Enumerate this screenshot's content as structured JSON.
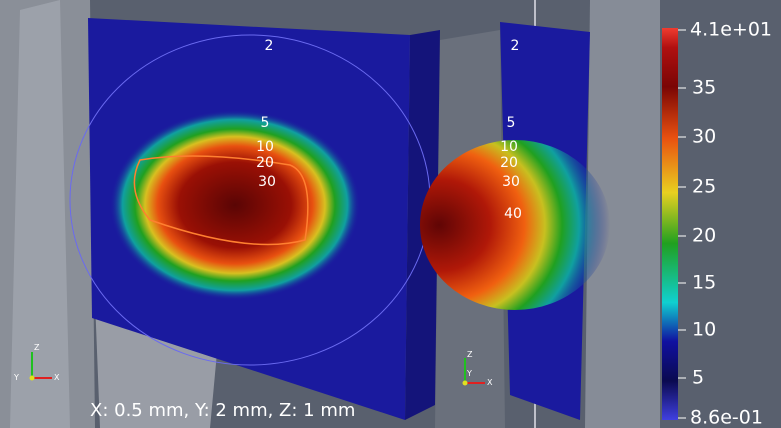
{
  "left_contour_labels": [
    "2",
    "5",
    "10",
    "20",
    "30"
  ],
  "right_contour_labels": [
    "2",
    "5",
    "10",
    "20",
    "30",
    "40"
  ],
  "colorbar_labels": [
    "4.1e+01",
    "35",
    "30",
    "25",
    "20",
    "15",
    "10",
    "5",
    "8.6e-01"
  ],
  "triad_labels": [
    "Z",
    "Y",
    "X"
  ],
  "caption": "X: 0.5 mm, Y: 2 mm, Z: 1 mm"
}
